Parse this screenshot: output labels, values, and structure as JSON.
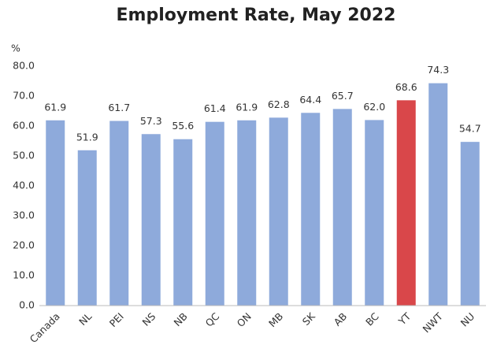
{
  "chart_data": {
    "type": "bar",
    "title": "Employment Rate, May 2022",
    "y_label": "%",
    "categories": [
      "Canada",
      "NL",
      "PEI",
      "NS",
      "NB",
      "QC",
      "ON",
      "MB",
      "SK",
      "AB",
      "BC",
      "YT",
      "NWT",
      "NU"
    ],
    "values": [
      61.9,
      51.9,
      61.7,
      57.3,
      55.6,
      61.4,
      61.9,
      62.8,
      64.4,
      65.7,
      62.0,
      68.6,
      74.3,
      54.7
    ],
    "value_labels": [
      "61.9",
      "51.9",
      "61.7",
      "57.3",
      "55.6",
      "61.4",
      "61.9",
      "62.8",
      "64.4",
      "65.7",
      "62.0",
      "68.6",
      "74.3",
      "54.7"
    ],
    "colors": [
      "#8eaadb",
      "#8eaadb",
      "#8eaadb",
      "#8eaadb",
      "#8eaadb",
      "#8eaadb",
      "#8eaadb",
      "#8eaadb",
      "#8eaadb",
      "#8eaadb",
      "#8eaadb",
      "#d9474a",
      "#8eaadb",
      "#8eaadb"
    ],
    "ylim": [
      0,
      80
    ],
    "yticks": [
      {
        "value": 0,
        "label": "0.0"
      },
      {
        "value": 10,
        "label": "10.0"
      },
      {
        "value": 20,
        "label": "20.0"
      },
      {
        "value": 30,
        "label": "30.0"
      },
      {
        "value": 40,
        "label": "40.0"
      },
      {
        "value": 50,
        "label": "50.0"
      },
      {
        "value": 60,
        "label": "60.0"
      },
      {
        "value": 70,
        "label": "70.0"
      },
      {
        "value": 80,
        "label": "80.0"
      }
    ],
    "grid": false
  }
}
